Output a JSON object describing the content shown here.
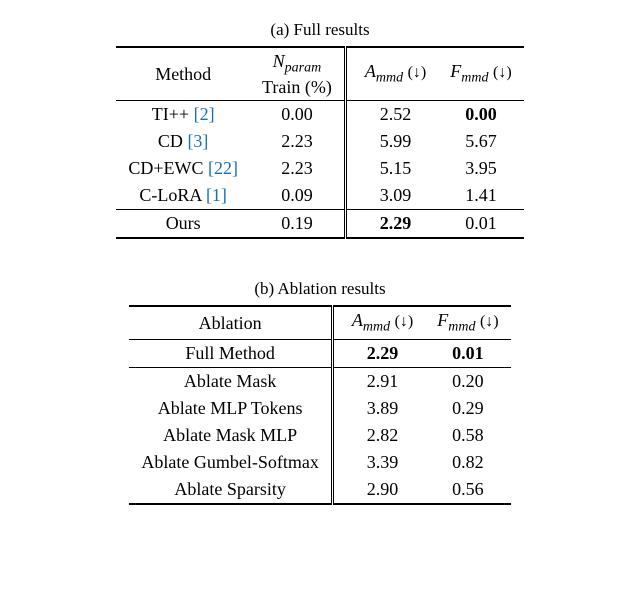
{
  "tableA": {
    "caption": "(a) Full results",
    "headers": {
      "method": "Method",
      "nparam_line1_html": "<span class='ital'>N</span><span class='sub'>param</span>",
      "nparam_line2": "Train (%)",
      "ammd_html": "<span class='ital'>A</span><span class='sub'>mmd</span> <span class='arrow'>(↓)</span>",
      "fmmd_html": "<span class='ital'>F</span><span class='sub'>mmd</span> <span class='arrow'>(↓)</span>"
    },
    "rows": [
      {
        "method": "TI++",
        "cite": "[2]",
        "nparam": "0.00",
        "ammd": "2.52",
        "fmmd": "0.00",
        "f_bold": true
      },
      {
        "method": "CD",
        "cite": "[3]",
        "nparam": "2.23",
        "ammd": "5.99",
        "fmmd": "5.67"
      },
      {
        "method": "CD+EWC",
        "cite": "[22]",
        "nparam": "2.23",
        "ammd": "5.15",
        "fmmd": "3.95"
      },
      {
        "method": "C-LoRA",
        "cite": "[1]",
        "nparam": "0.09",
        "ammd": "3.09",
        "fmmd": "1.41"
      }
    ],
    "ours": {
      "method": "Ours",
      "nparam": "0.19",
      "ammd": "2.29",
      "a_bold": true,
      "fmmd": "0.01"
    }
  },
  "tableB": {
    "caption": "(b) Ablation results",
    "headers": {
      "ablation": "Ablation",
      "ammd_html": "<span class='ital'>A</span><span class='sub'>mmd</span> <span class='arrow'>(↓)</span>",
      "fmmd_html": "<span class='ital'>F</span><span class='sub'>mmd</span> <span class='arrow'>(↓)</span>"
    },
    "full": {
      "label": "Full Method",
      "ammd": "2.29",
      "fmmd": "0.01",
      "a_bold": true,
      "f_bold": true
    },
    "rows": [
      {
        "label": "Ablate Mask",
        "ammd": "2.91",
        "fmmd": "0.20"
      },
      {
        "label": "Ablate MLP Tokens",
        "ammd": "3.89",
        "fmmd": "0.29"
      },
      {
        "label": "Ablate Mask MLP",
        "ammd": "2.82",
        "fmmd": "0.58"
      },
      {
        "label": "Ablate Gumbel-Softmax",
        "ammd": "3.39",
        "fmmd": "0.82"
      },
      {
        "label": "Ablate Sparsity",
        "ammd": "2.90",
        "fmmd": "0.56"
      }
    ]
  }
}
